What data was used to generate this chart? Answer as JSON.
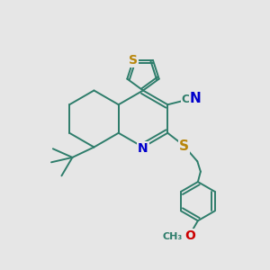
{
  "bg_color": "#e6e6e6",
  "bond_color": "#2e7d6b",
  "bond_width": 1.4,
  "atom_colors": {
    "S": "#b8860b",
    "N": "#0000cc",
    "C": "#2e7d6b",
    "O": "#cc0000"
  },
  "font_size": 9,
  "figsize": [
    3.0,
    3.0
  ],
  "dpi": 100,
  "xlim": [
    0,
    10
  ],
  "ylim": [
    0,
    10
  ]
}
